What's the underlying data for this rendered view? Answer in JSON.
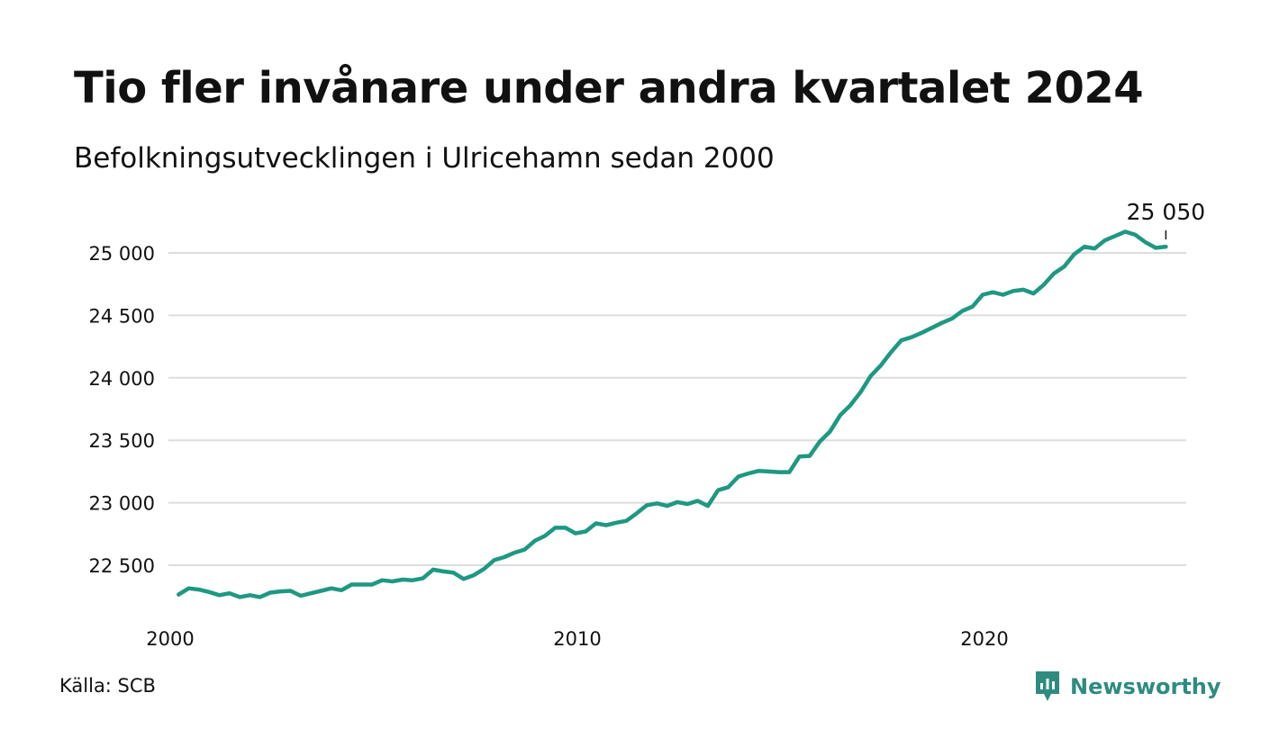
{
  "title": "Tio fler invånare under andra kvartalet 2024",
  "subtitle": "Befolkningsutvecklingen i Ulricehamn sedan 2000",
  "source": "Källa: SCB",
  "brand": {
    "name": "Newsworthy",
    "icon": "newsworthy-logo-icon",
    "color": "#2e8b7f"
  },
  "colors": {
    "line": "#1e9882",
    "grid": "#dddddd",
    "text": "#111111"
  },
  "chart_data": {
    "type": "line",
    "title": "Tio fler invånare under andra kvartalet 2024",
    "subtitle": "Befolkningsutvecklingen i Ulricehamn sedan 2000",
    "xlabel": "",
    "ylabel": "",
    "x_ticks": [
      2000,
      2010,
      2020
    ],
    "y_ticks": [
      22500,
      23000,
      23500,
      24000,
      24500,
      25000
    ],
    "y_tick_labels": [
      "22 500",
      "23 000",
      "23 500",
      "24 000",
      "24 500",
      "25 000"
    ],
    "x_tick_labels": [
      "2000",
      "2010",
      "2020"
    ],
    "xlim": [
      2000,
      2025
    ],
    "ylim": [
      22100,
      25200
    ],
    "grid": true,
    "legend": "none",
    "annotation": {
      "x": 2024.5,
      "y": 25050,
      "label": "25 050"
    },
    "series": [
      {
        "x": [
          2000.25,
          2000.5,
          2000.75,
          2001,
          2001.25,
          2001.5,
          2001.75,
          2002,
          2002.25,
          2002.5,
          2002.75,
          2003,
          2003.25,
          2003.5,
          2003.75,
          2004,
          2004.25,
          2004.5,
          2004.75,
          2005,
          2005.25,
          2005.5,
          2005.75,
          2006,
          2006.25,
          2006.5,
          2006.75,
          2007,
          2007.25,
          2007.5,
          2007.75,
          2008,
          2008.25,
          2008.5,
          2008.75,
          2009,
          2009.25,
          2009.5,
          2009.75,
          2010,
          2010.25,
          2010.5,
          2010.75,
          2011,
          2011.25,
          2011.5,
          2011.75,
          2012,
          2012.25,
          2012.5,
          2012.75,
          2013,
          2013.25,
          2013.5,
          2013.75,
          2014,
          2014.25,
          2014.5,
          2014.75,
          2015,
          2015.25,
          2015.5,
          2015.75,
          2016,
          2016.25,
          2016.5,
          2016.75,
          2017,
          2017.25,
          2017.5,
          2017.75,
          2018,
          2018.25,
          2018.5,
          2018.75,
          2019,
          2019.25,
          2019.5,
          2019.75,
          2020,
          2020.25,
          2020.5,
          2020.75,
          2021,
          2021.25,
          2021.5,
          2021.75,
          2022,
          2022.25,
          2022.5,
          2022.75,
          2023,
          2023.25,
          2023.5,
          2023.75,
          2024,
          2024.25,
          2024.5
        ],
        "values": [
          22265,
          22315,
          22305,
          22285,
          22260,
          22275,
          22245,
          22260,
          22245,
          22280,
          22290,
          22295,
          22255,
          22275,
          22295,
          22315,
          22300,
          22345,
          22345,
          22345,
          22380,
          22370,
          22385,
          22380,
          22395,
          22465,
          22450,
          22440,
          22390,
          22420,
          22470,
          22540,
          22565,
          22600,
          22625,
          22695,
          22735,
          22800,
          22800,
          22755,
          22770,
          22835,
          22820,
          22840,
          22855,
          22915,
          22980,
          22995,
          22975,
          23005,
          22990,
          23015,
          22975,
          23100,
          23125,
          23210,
          23235,
          23255,
          23250,
          23245,
          23245,
          23370,
          23375,
          23490,
          23570,
          23700,
          23780,
          23885,
          24015,
          24100,
          24205,
          24300,
          24325,
          24360,
          24400,
          24440,
          24475,
          24535,
          24570,
          24665,
          24685,
          24665,
          24695,
          24705,
          24675,
          24745,
          24835,
          24890,
          24990,
          25050,
          25035,
          25100,
          25135,
          25170,
          25145,
          25085,
          25040,
          25050
        ]
      }
    ]
  }
}
